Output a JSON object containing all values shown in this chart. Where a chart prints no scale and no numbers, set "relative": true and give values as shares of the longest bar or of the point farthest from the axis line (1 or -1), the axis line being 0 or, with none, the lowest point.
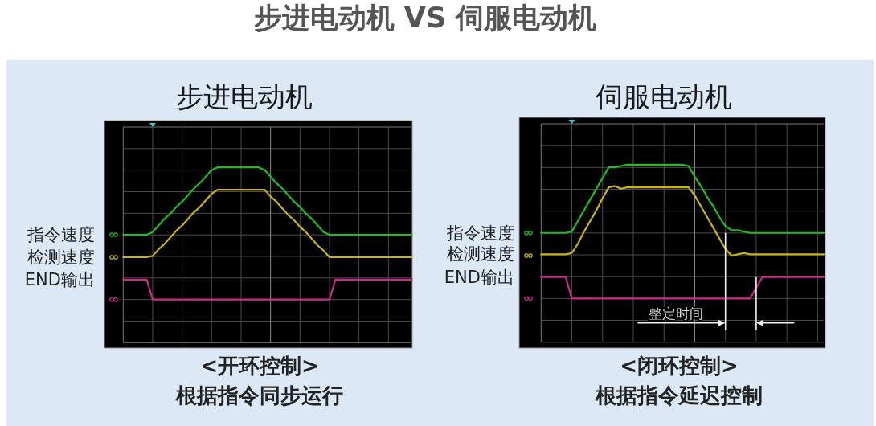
{
  "chart_data": [
    {
      "type": "line",
      "title": "步进电动机 VS 伺服电动机",
      "subtitle": "步进电动机",
      "relative": true,
      "grid": true,
      "legend": "left",
      "categories": [
        null,
        null,
        null,
        null,
        null,
        null,
        null,
        null,
        null,
        null,
        null,
        null,
        null,
        null,
        null,
        null,
        null,
        null,
        null,
        null,
        null,
        null,
        null,
        null,
        null,
        null,
        null,
        null,
        null,
        null,
        null,
        null,
        null,
        null,
        null,
        null,
        null,
        null,
        null,
        null,
        null,
        null,
        null,
        null,
        null,
        null,
        null,
        null,
        null,
        null
      ],
      "series": [
        {
          "name": "指令速度",
          "color": "#22bb22",
          "values": [
            0.49,
            0.49,
            0.49,
            0.49,
            0.49,
            0.51,
            0.56,
            0.61,
            0.65,
            0.7,
            0.74,
            0.79,
            0.84,
            0.88,
            0.93,
            0.98,
            1,
            1,
            1,
            1,
            1,
            1,
            1,
            1,
            0.98,
            0.93,
            0.88,
            0.84,
            0.79,
            0.74,
            0.7,
            0.65,
            0.61,
            0.56,
            0.51,
            0.49,
            0.49,
            0.49,
            0.49,
            0.49,
            0.49,
            0.49,
            0.49,
            0.49,
            0.49,
            0.49,
            0.49,
            0.49,
            0.49,
            0.49
          ]
        },
        {
          "name": "检测速度",
          "color": "#c8b414",
          "values": [
            0.32,
            0.32,
            0.32,
            0.32,
            0.32,
            0.33,
            0.38,
            0.42,
            0.47,
            0.52,
            0.56,
            0.61,
            0.66,
            0.7,
            0.75,
            0.8,
            0.83,
            0.83,
            0.83,
            0.83,
            0.83,
            0.83,
            0.83,
            0.83,
            0.83,
            0.78,
            0.74,
            0.69,
            0.64,
            0.6,
            0.55,
            0.51,
            0.46,
            0.41,
            0.37,
            0.32,
            0.32,
            0.32,
            0.32,
            0.32,
            0.32,
            0.32,
            0.32,
            0.32,
            0.32,
            0.32,
            0.32,
            0.32,
            0.32,
            0.32
          ]
        },
        {
          "name": "END输出",
          "color": "#cc2a8a",
          "values": [
            0.15,
            0.15,
            0.15,
            0.15,
            0.15,
            0,
            0,
            0,
            0,
            0,
            0,
            0,
            0,
            0,
            0,
            0,
            0,
            0,
            0,
            0,
            0,
            0,
            0,
            0,
            0,
            0,
            0,
            0,
            0,
            0,
            0,
            0,
            0,
            0,
            0,
            0,
            0.15,
            0.15,
            0.15,
            0.15,
            0.15,
            0.15,
            0.15,
            0.15,
            0.15,
            0.15,
            0.15,
            0.15,
            0.15,
            0.15
          ]
        }
      ],
      "annotations": [
        "<开环控制>",
        "根据指令同步运行"
      ]
    },
    {
      "type": "line",
      "title": "伺服电动机",
      "relative": true,
      "grid": true,
      "legend": "left",
      "categories": [
        null,
        null,
        null,
        null,
        null,
        null,
        null,
        null,
        null,
        null,
        null,
        null,
        null,
        null,
        null,
        null,
        null,
        null,
        null,
        null,
        null,
        null,
        null,
        null,
        null,
        null,
        null,
        null,
        null,
        null,
        null,
        null,
        null,
        null,
        null,
        null,
        null,
        null,
        null,
        null,
        null,
        null,
        null,
        null,
        null,
        null,
        null
      ],
      "series": [
        {
          "name": "指令速度",
          "color": "#22bb22",
          "values": [
            0.49,
            0.49,
            0.49,
            0.49,
            0.49,
            0.5,
            0.58,
            0.66,
            0.74,
            0.82,
            0.9,
            0.98,
            0.98,
            0.99,
            1,
            1,
            1,
            1,
            1,
            1,
            1,
            1,
            1,
            1,
            0.99,
            0.91,
            0.84,
            0.76,
            0.69,
            0.61,
            0.54,
            0.51,
            0.51,
            0.5,
            0.49,
            0.49,
            0.49,
            0.49,
            0.49,
            0.49,
            0.49,
            0.49,
            0.49,
            0.49,
            0.49,
            0.49,
            0.49
          ]
        },
        {
          "name": "检测速度",
          "color": "#c8b414",
          "values": [
            0.33,
            0.33,
            0.33,
            0.33,
            0.33,
            0.34,
            0.41,
            0.5,
            0.58,
            0.66,
            0.75,
            0.83,
            0.84,
            0.82,
            0.83,
            0.83,
            0.83,
            0.83,
            0.83,
            0.83,
            0.83,
            0.83,
            0.83,
            0.83,
            0.83,
            0.77,
            0.69,
            0.61,
            0.53,
            0.45,
            0.37,
            0.32,
            0.33,
            0.34,
            0.33,
            0.33,
            0.33,
            0.33,
            0.33,
            0.33,
            0.33,
            0.33,
            0.33,
            0.33,
            0.33,
            0.33,
            0.33
          ]
        },
        {
          "name": "END输出",
          "color": "#cc2a8a",
          "values": [
            0.16,
            0.16,
            0.16,
            0.16,
            0.16,
            0,
            0,
            0,
            0,
            0,
            0,
            0,
            0,
            0,
            0,
            0,
            0,
            0,
            0,
            0,
            0,
            0,
            0,
            0,
            0,
            0,
            0,
            0,
            0,
            0,
            0,
            0,
            0,
            0,
            0,
            0.08,
            0.16,
            0.16,
            0.16,
            0.16,
            0.16,
            0.16,
            0.16,
            0.16,
            0.16,
            0.16,
            0.16
          ]
        }
      ],
      "annotations": [
        "整定时间",
        "<闭环控制>",
        "根据指令延迟控制"
      ]
    }
  ]
}
